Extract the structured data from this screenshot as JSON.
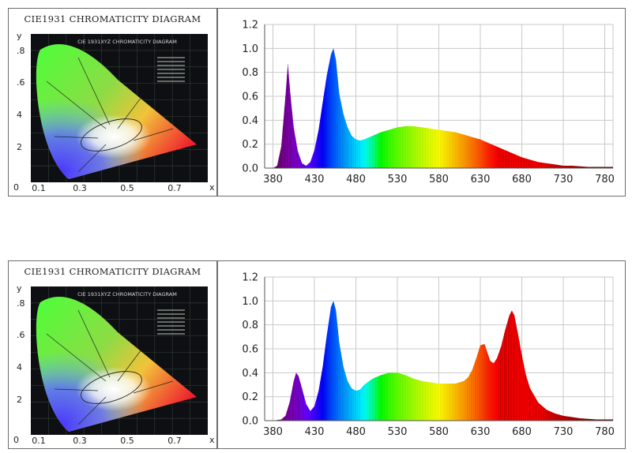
{
  "cie": {
    "title": "CIE1931 CHROMATICITY DIAGRAM",
    "inner_title": "CIE 1931XYZ CHROMATICITY DIAGRAM",
    "y_axis_label": "y",
    "x_axis_label": "x",
    "origin_label": "0",
    "x_ticks": [
      "0.1",
      "0.3",
      "0.5",
      "0.7"
    ],
    "y_ticks": [
      ".8",
      ".6",
      "4",
      "2"
    ]
  },
  "colors": {
    "locus_green": "#36c23a",
    "locus_red": "#e8262f",
    "locus_blue": "#3b2fd6",
    "grid": "#c9c9c9",
    "frame": "#6d6d6d"
  },
  "chart_data": [
    {
      "type": "area",
      "x": [
        380,
        385,
        390,
        395,
        398,
        401,
        405,
        410,
        415,
        420,
        425,
        430,
        435,
        440,
        445,
        450,
        453,
        456,
        460,
        465,
        470,
        475,
        480,
        485,
        490,
        500,
        510,
        520,
        530,
        540,
        550,
        560,
        570,
        580,
        590,
        600,
        610,
        620,
        630,
        640,
        650,
        660,
        670,
        680,
        690,
        700,
        710,
        720,
        730,
        740,
        750,
        760,
        770,
        780,
        790
      ],
      "values": [
        0.0,
        0.02,
        0.18,
        0.6,
        0.87,
        0.62,
        0.34,
        0.14,
        0.04,
        0.02,
        0.05,
        0.15,
        0.32,
        0.55,
        0.78,
        0.95,
        1.0,
        0.9,
        0.62,
        0.45,
        0.34,
        0.27,
        0.24,
        0.23,
        0.24,
        0.27,
        0.3,
        0.32,
        0.34,
        0.35,
        0.35,
        0.34,
        0.33,
        0.32,
        0.31,
        0.3,
        0.28,
        0.26,
        0.24,
        0.21,
        0.18,
        0.15,
        0.12,
        0.09,
        0.07,
        0.05,
        0.04,
        0.03,
        0.02,
        0.02,
        0.015,
        0.01,
        0.01,
        0.01,
        0.01
      ],
      "ylim": [
        0,
        1.2
      ],
      "xlim": [
        370,
        790
      ],
      "x_ticks": [
        380,
        430,
        480,
        530,
        580,
        630,
        680,
        730,
        780
      ],
      "y_ticks": [
        "0.0",
        "0.2",
        "0.4",
        "0.6",
        "0.8",
        "1.0",
        "1.2"
      ],
      "grid": true
    },
    {
      "type": "area",
      "x": [
        380,
        390,
        395,
        400,
        405,
        408,
        411,
        415,
        420,
        425,
        430,
        435,
        440,
        445,
        450,
        453,
        456,
        460,
        465,
        470,
        475,
        480,
        485,
        490,
        500,
        510,
        520,
        530,
        540,
        550,
        560,
        570,
        580,
        590,
        600,
        610,
        615,
        620,
        625,
        630,
        635,
        638,
        642,
        646,
        650,
        655,
        660,
        665,
        668,
        671,
        675,
        680,
        685,
        690,
        700,
        710,
        720,
        730,
        740,
        750,
        760,
        770,
        780,
        790
      ],
      "values": [
        0.0,
        0.01,
        0.04,
        0.15,
        0.33,
        0.4,
        0.37,
        0.27,
        0.14,
        0.08,
        0.12,
        0.25,
        0.45,
        0.72,
        0.95,
        1.0,
        0.92,
        0.65,
        0.45,
        0.33,
        0.27,
        0.25,
        0.26,
        0.3,
        0.35,
        0.38,
        0.4,
        0.4,
        0.38,
        0.35,
        0.33,
        0.32,
        0.31,
        0.31,
        0.31,
        0.33,
        0.36,
        0.42,
        0.52,
        0.63,
        0.64,
        0.58,
        0.5,
        0.48,
        0.52,
        0.62,
        0.76,
        0.88,
        0.92,
        0.88,
        0.74,
        0.55,
        0.38,
        0.27,
        0.15,
        0.09,
        0.06,
        0.04,
        0.03,
        0.02,
        0.015,
        0.01,
        0.01,
        0.01
      ],
      "ylim": [
        0,
        1.2
      ],
      "xlim": [
        370,
        790
      ],
      "x_ticks": [
        380,
        430,
        480,
        530,
        580,
        630,
        680,
        730,
        780
      ],
      "y_ticks": [
        "0.0",
        "0.2",
        "0.4",
        "0.6",
        "0.8",
        "1.0",
        "1.2"
      ],
      "grid": true
    }
  ]
}
